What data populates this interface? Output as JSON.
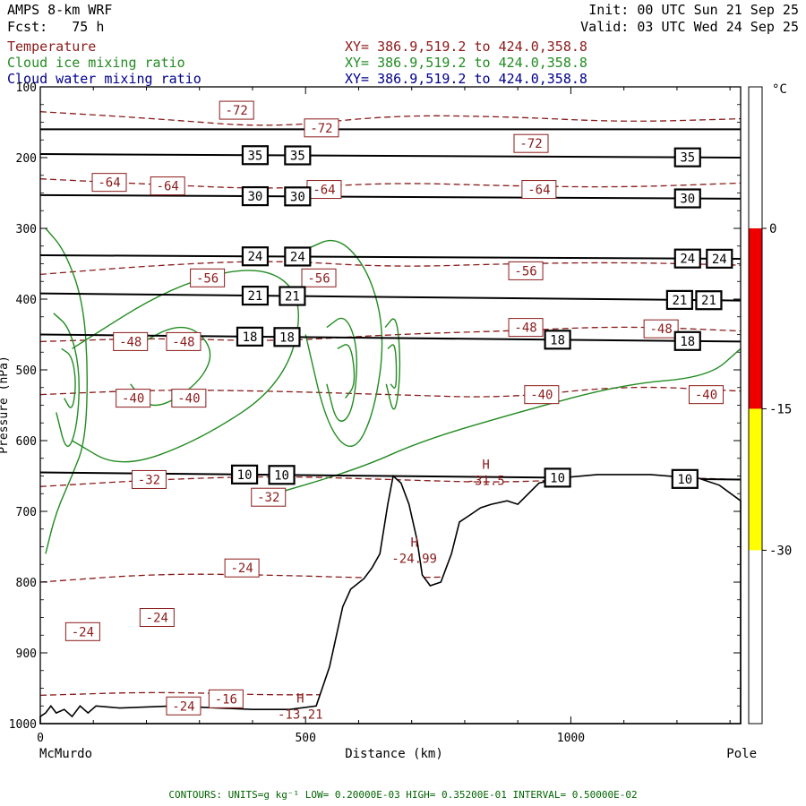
{
  "header": {
    "model": "AMPS 8-km WRF",
    "forecast": "Fcst:   75 h",
    "init": "Init: 00 UTC Sun 21 Sep 25",
    "valid": "Valid: 03 UTC Wed 24 Sep 25"
  },
  "fields": [
    {
      "name": "Temperature",
      "xy": "XY= 386.9,519.2 to 424.0,358.8",
      "color": "#8b1a1a"
    },
    {
      "name": "Cloud ice mixing ratio",
      "xy": "XY= 386.9,519.2 to 424.0,358.8",
      "color": "#228b22"
    },
    {
      "name": "Cloud water mixing ratio",
      "xy": "XY= 386.9,519.2 to 424.0,358.8",
      "color": "#00008b"
    }
  ],
  "footer": "CONTOURS:  UNITS=g kg⁻¹  LOW= 0.20000E-03  HIGH= 0.35200E-01  INTERVAL=  0.50000E-02",
  "chart_data": {
    "type": "cross-section",
    "xlabel": "Distance (km)",
    "ylabel": "Pressure (hPa)",
    "xlim": [
      0,
      1320
    ],
    "ylim": [
      1000,
      100
    ],
    "x_ticks": [
      {
        "value": 0,
        "label": "0"
      },
      {
        "value": 500,
        "label": "500"
      },
      {
        "value": 1000,
        "label": "1000"
      }
    ],
    "y_ticks": [
      {
        "value": 100,
        "label": "100"
      },
      {
        "value": 200,
        "label": "200"
      },
      {
        "value": 300,
        "label": "300"
      },
      {
        "value": 400,
        "label": "400"
      },
      {
        "value": 500,
        "label": "500"
      },
      {
        "value": 600,
        "label": "600"
      },
      {
        "value": 700,
        "label": "700"
      },
      {
        "value": 800,
        "label": "800"
      },
      {
        "value": 900,
        "label": "900"
      },
      {
        "value": 1000,
        "label": "1000"
      }
    ],
    "endpoints": {
      "left": "McMurdo",
      "right": "Pole"
    },
    "terrain": [
      [
        0,
        990
      ],
      [
        10,
        985
      ],
      [
        20,
        975
      ],
      [
        30,
        985
      ],
      [
        45,
        980
      ],
      [
        60,
        990
      ],
      [
        75,
        975
      ],
      [
        90,
        985
      ],
      [
        105,
        975
      ],
      [
        150,
        978
      ],
      [
        250,
        975
      ],
      [
        400,
        980
      ],
      [
        470,
        980
      ],
      [
        520,
        975
      ],
      [
        545,
        920
      ],
      [
        570,
        835
      ],
      [
        585,
        810
      ],
      [
        610,
        795
      ],
      [
        625,
        780
      ],
      [
        640,
        760
      ],
      [
        655,
        690
      ],
      [
        665,
        650
      ],
      [
        680,
        660
      ],
      [
        695,
        690
      ],
      [
        710,
        740
      ],
      [
        720,
        790
      ],
      [
        735,
        805
      ],
      [
        755,
        800
      ],
      [
        775,
        760
      ],
      [
        790,
        715
      ],
      [
        810,
        705
      ],
      [
        830,
        695
      ],
      [
        850,
        690
      ],
      [
        880,
        685
      ],
      [
        900,
        690
      ],
      [
        940,
        660
      ],
      [
        990,
        652
      ],
      [
        1050,
        648
      ],
      [
        1100,
        648
      ],
      [
        1150,
        648
      ],
      [
        1200,
        651
      ],
      [
        1240,
        653
      ],
      [
        1280,
        663
      ],
      [
        1320,
        685
      ]
    ],
    "isotherms": [
      {
        "label": "-72",
        "p": [
          135,
          145,
          158,
          140,
          142,
          150,
          145
        ]
      },
      {
        "label": "-64",
        "p": [
          230,
          238,
          245,
          235,
          240,
          242,
          236
        ]
      },
      {
        "label": "-56",
        "p": [
          365,
          352,
          345,
          355,
          350,
          348,
          352
        ]
      },
      {
        "label": "-48",
        "p": [
          460,
          455,
          460,
          450,
          445,
          438,
          445
        ]
      },
      {
        "label": "-40",
        "p": [
          535,
          528,
          530,
          535,
          540,
          522,
          530
        ]
      },
      {
        "label": "-32",
        "p": [
          665,
          655,
          650,
          655,
          660,
          650,
          655
        ]
      },
      {
        "label": "-24",
        "p": [
          800,
          788,
          790,
          795,
          790,
          785,
          790
        ]
      },
      {
        "label": "-16",
        "p": [
          960,
          955,
          960,
          958,
          962,
          960,
          960
        ]
      }
    ],
    "isotherm_x": [
      0,
      220,
      440,
      660,
      880,
      1100,
      1320
    ],
    "isotherm_labels": [
      {
        "text": "-72",
        "x": 370,
        "p": 133
      },
      {
        "text": "-72",
        "x": 530,
        "p": 158
      },
      {
        "text": "-72",
        "x": 925,
        "p": 180
      },
      {
        "text": "-64",
        "x": 130,
        "p": 235
      },
      {
        "text": "-64",
        "x": 240,
        "p": 240
      },
      {
        "text": "-64",
        "x": 535,
        "p": 245
      },
      {
        "text": "-64",
        "x": 940,
        "p": 245
      },
      {
        "text": "-56",
        "x": 315,
        "p": 370
      },
      {
        "text": "-56",
        "x": 525,
        "p": 370
      },
      {
        "text": "-56",
        "x": 915,
        "p": 360
      },
      {
        "text": "-48",
        "x": 170,
        "p": 460
      },
      {
        "text": "-48",
        "x": 270,
        "p": 460
      },
      {
        "text": "-48",
        "x": 915,
        "p": 440
      },
      {
        "text": "-48",
        "x": 1170,
        "p": 442
      },
      {
        "text": "-40",
        "x": 175,
        "p": 540
      },
      {
        "text": "-40",
        "x": 280,
        "p": 540
      },
      {
        "text": "-40",
        "x": 945,
        "p": 535
      },
      {
        "text": "-40",
        "x": 1255,
        "p": 535
      },
      {
        "text": "-32",
        "x": 205,
        "p": 655
      },
      {
        "text": "-32",
        "x": 430,
        "p": 680
      },
      {
        "text": "-24",
        "x": 380,
        "p": 780
      },
      {
        "text": "-24",
        "x": 220,
        "p": 850
      },
      {
        "text": "-24",
        "x": 80,
        "p": 870
      },
      {
        "text": "-24",
        "x": 270,
        "p": 975
      },
      {
        "text": "-16",
        "x": 350,
        "p": 965
      }
    ],
    "theta_lines": [
      {
        "label": "35",
        "p0": 195,
        "p1": 200,
        "label_x": [
          405,
          485,
          1220
        ]
      },
      {
        "label": "30",
        "p0": 253,
        "p1": 258,
        "label_x": [
          405,
          485,
          1220
        ]
      },
      {
        "label": "24",
        "p0": 338,
        "p1": 343,
        "label_x": [
          405,
          485,
          1220,
          1280
        ]
      },
      {
        "label": "21",
        "p0": 392,
        "p1": 402,
        "label_x": [
          405,
          475,
          1205,
          1260
        ]
      },
      {
        "label": "18",
        "p0": 450,
        "p1": 460,
        "label_x": [
          395,
          465,
          975,
          1220
        ]
      },
      {
        "label": "10",
        "p0": 645,
        "p1": 655,
        "label_x": [
          385,
          455,
          975,
          1215
        ]
      }
    ],
    "top_line_p": 160,
    "ice_contours": [
      {
        "x": [
          10,
          45,
          80,
          90,
          85,
          60,
          30,
          10
        ],
        "p": [
          300,
          330,
          400,
          500,
          600,
          650,
          700,
          760
        ]
      },
      {
        "x": [
          25,
          55,
          75,
          70,
          50,
          30
        ],
        "p": [
          420,
          440,
          500,
          580,
          620,
          560
        ]
      },
      {
        "x": [
          40,
          60,
          68,
          60,
          45
        ],
        "p": [
          470,
          480,
          520,
          560,
          540
        ]
      },
      {
        "x": [
          60,
          250,
          420,
          500,
          460,
          300,
          150,
          60
        ],
        "p": [
          470,
          380,
          350,
          400,
          520,
          600,
          640,
          600
        ]
      },
      {
        "x": [
          170,
          270,
          330,
          300,
          210,
          170
        ],
        "p": [
          470,
          430,
          470,
          520,
          560,
          520
        ]
      },
      {
        "x": [
          500,
          560,
          620,
          650,
          630,
          590,
          540,
          500
        ],
        "p": [
          330,
          310,
          360,
          450,
          560,
          620,
          580,
          450
        ]
      },
      {
        "x": [
          540,
          575,
          600,
          590,
          560,
          540
        ],
        "p": [
          440,
          420,
          470,
          560,
          580,
          520
        ]
      },
      {
        "x": [
          560,
          585,
          595,
          575
        ],
        "p": [
          470,
          460,
          520,
          540
        ]
      },
      {
        "x": [
          650,
          672,
          680,
          668,
          652
        ],
        "p": [
          440,
          420,
          500,
          570,
          520
        ]
      },
      {
        "x": [
          655,
          670,
          672,
          660
        ],
        "p": [
          470,
          460,
          530,
          520
        ]
      },
      {
        "x": [
          420,
          600,
          720,
          900,
          1100,
          1260,
          1320
        ],
        "p": [
          680,
          640,
          600,
          560,
          520,
          510,
          470
        ]
      }
    ],
    "highs": [
      {
        "label": "H",
        "value": "-13.21",
        "x": 490,
        "p": 970
      },
      {
        "label": "H",
        "value": "-24.99",
        "x": 705,
        "p": 750
      },
      {
        "label": "H",
        "value": "-31.5",
        "x": 840,
        "p": 640
      }
    ]
  },
  "colorbar": {
    "unit": "°C",
    "labels": [
      "0",
      "-15",
      "-30"
    ],
    "segments": [
      {
        "from": 100,
        "to": 300,
        "color": "#ffffff"
      },
      {
        "from": 300,
        "to": 555,
        "color": "#ee0000"
      },
      {
        "from": 555,
        "to": 755,
        "color": "#ffff00"
      },
      {
        "from": 755,
        "to": 1000,
        "color": "#ffffff"
      }
    ]
  }
}
